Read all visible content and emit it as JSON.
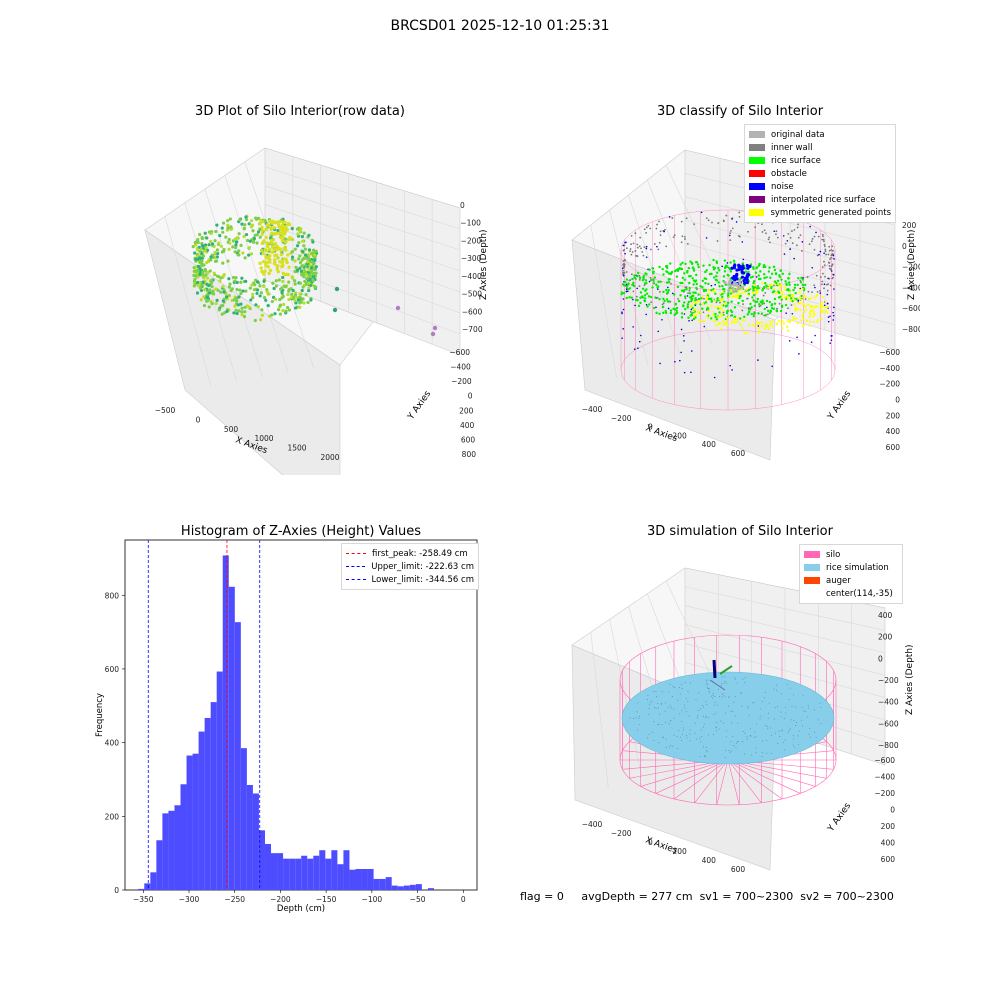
{
  "suptitle": "BRCSD01 2025-12-10 01:25:31",
  "chart_data": [
    {
      "type": "scatter",
      "title": "3D Plot of Silo Interior(row data)",
      "xlabel": "X Axies",
      "ylabel": "Y Axies",
      "zlabel": "Z Axies (Depth)",
      "xticks": [
        "-500",
        "0",
        "500",
        "1000",
        "1500",
        "2000"
      ],
      "yticks": [
        "-600",
        "-400",
        "-200",
        "0",
        "200",
        "400",
        "600",
        "800"
      ],
      "zticks": [
        "0",
        "-100",
        "-200",
        "-300",
        "-400",
        "-500",
        "-600",
        "-700"
      ],
      "colormap": "viridis",
      "outliers": [
        {
          "x": 900,
          "y": -100,
          "z": -480
        },
        {
          "x": 800,
          "y": -300,
          "z": -600
        },
        {
          "x": 1500,
          "y": -150,
          "z": -610
        },
        {
          "x": 1800,
          "y": -250,
          "z": -650
        },
        {
          "x": 1850,
          "y": -260,
          "z": -700
        }
      ]
    },
    {
      "type": "scatter",
      "title": "3D classify of Silo Interior",
      "xlabel": "X Axies",
      "ylabel": "Y Axies",
      "zlabel": "Z Axies (Depth)",
      "xticks": [
        "-400",
        "-200",
        "0",
        "200",
        "400",
        "600"
      ],
      "yticks": [
        "-600",
        "-400",
        "-200",
        "0",
        "200",
        "400",
        "600"
      ],
      "zticks": [
        "200",
        "0",
        "-200",
        "-400",
        "-600",
        "-800"
      ],
      "legend_position": "upper-right",
      "legend": [
        {
          "label": "original data",
          "color": "#b3b3b3"
        },
        {
          "label": "inner wall",
          "color": "#808080"
        },
        {
          "label": "rice surface",
          "color": "#00ff00"
        },
        {
          "label": "obstacle",
          "color": "#ff0000"
        },
        {
          "label": "noise",
          "color": "#0000ff"
        },
        {
          "label": "interpolated rice surface",
          "color": "#800080"
        },
        {
          "label": "symmetric generated points",
          "color": "#ffff00"
        }
      ]
    },
    {
      "type": "bar",
      "title": "Histogram of Z-Axies (Height) Values",
      "xlabel": "Depth (cm)",
      "ylabel": "Frequency",
      "xlim": [
        -370,
        15
      ],
      "ylim": [
        0,
        950
      ],
      "xticks": [
        -350,
        -300,
        -250,
        -200,
        -150,
        -100,
        -50,
        0
      ],
      "yticks": [
        0,
        200,
        400,
        600,
        800
      ],
      "bar_color": "#4d4dff",
      "bin_width": 6.6,
      "bin_start": -355.5,
      "values": [
        3,
        18,
        48,
        135,
        208,
        215,
        230,
        287,
        365,
        370,
        430,
        467,
        510,
        593,
        908,
        823,
        727,
        385,
        285,
        262,
        162,
        125,
        100,
        100,
        85,
        85,
        85,
        93,
        85,
        93,
        108,
        85,
        108,
        70,
        108,
        55,
        57,
        57,
        57,
        30,
        30,
        35,
        12,
        10,
        12,
        14,
        16,
        0,
        5
      ],
      "vlines": [
        {
          "x": -258.49,
          "label": "first_peak: -258.49 cm",
          "color": "#ff0000"
        },
        {
          "x": -222.63,
          "label": "Upper_limit: -222.63 cm",
          "color": "#0000ff"
        },
        {
          "x": -344.56,
          "label": "Lower_limit: -344.56 cm",
          "color": "#0000ff"
        }
      ],
      "legend_position": "upper-right"
    },
    {
      "type": "surface",
      "title": "3D simulation of Silo Interior",
      "xlabel": "X Axies",
      "ylabel": "Y Axies",
      "zlabel": "Z Axies (Depth)",
      "xticks": [
        "-400",
        "-200",
        "0",
        "200",
        "400",
        "600"
      ],
      "yticks": [
        "-600",
        "-400",
        "-200",
        "0",
        "200",
        "400",
        "600"
      ],
      "zticks": [
        "400",
        "200",
        "0",
        "-200",
        "-400",
        "-600",
        "-800"
      ],
      "legend_position": "upper-right",
      "legend": [
        {
          "label": "silo",
          "color": "#ff69b4"
        },
        {
          "label": "rice simulation",
          "color": "#87ceeb"
        },
        {
          "label": "auger",
          "color": "#ff4500"
        },
        {
          "label": "center(114,-35)",
          "color": ""
        }
      ]
    }
  ],
  "status": {
    "flag": "flag = 0",
    "avgDepth": "avgDepth = 277 cm",
    "sv1": "sv1 = 700~2300",
    "sv2": "sv2 = 700~2300"
  }
}
